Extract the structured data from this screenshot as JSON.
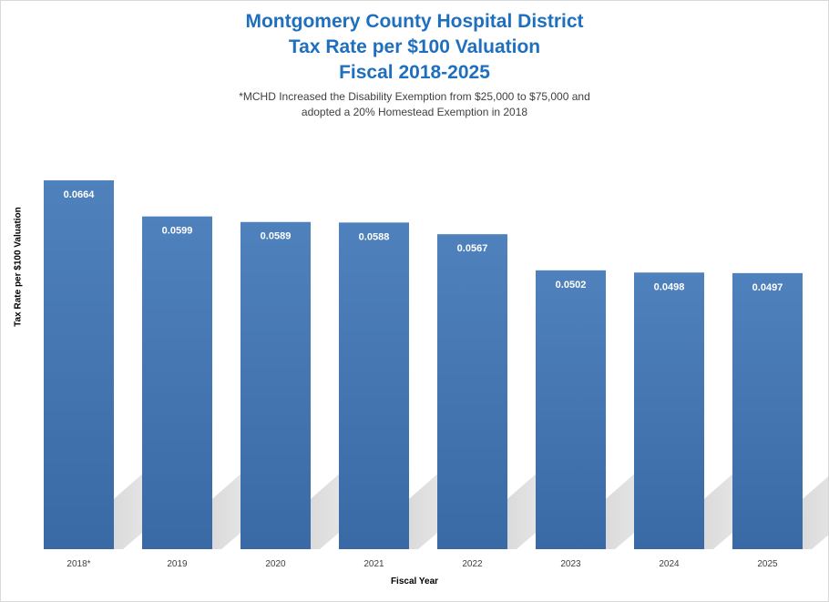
{
  "chart_data": {
    "type": "bar",
    "title_lines": [
      "Montgomery County Hospital District",
      "Tax Rate per $100 Valuation",
      "Fiscal 2018-2025"
    ],
    "subtitle_lines": [
      "*MCHD  Increased the Disability Exemption from $25,000 to $75,000 and",
      "adopted a 20% Homestead Exemption  in 2018"
    ],
    "categories": [
      "2018*",
      "2019",
      "2020",
      "2021",
      "2022",
      "2023",
      "2024",
      "2025"
    ],
    "values": [
      0.0664,
      0.0599,
      0.0589,
      0.0588,
      0.0567,
      0.0502,
      0.0498,
      0.0497
    ],
    "value_labels": [
      "0.0664",
      "0.0599",
      "0.0589",
      "0.0588",
      "0.0567",
      "0.0502",
      "0.0498",
      "0.0497"
    ],
    "xlabel": "Fiscal Year",
    "ylabel": "Tax Rate per $100 Valuation",
    "ylim": [
      0,
      0.0664
    ],
    "grid": false,
    "legend": "none",
    "colors": {
      "bar_top": "#4f81bd",
      "bar_bottom": "#3a6aa5",
      "title": "#1f6fbf",
      "shadow": "#cfcfcf"
    }
  }
}
